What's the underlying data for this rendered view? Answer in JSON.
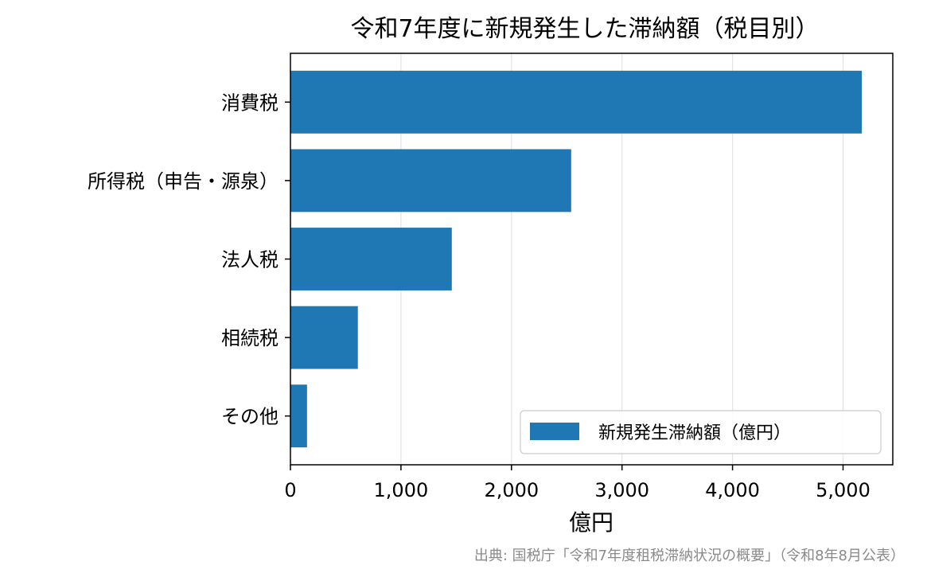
{
  "chart_data": {
    "type": "bar",
    "orientation": "horizontal",
    "title": "令和7年度に新規発生した滞納額（税目別）",
    "xlabel": "億円",
    "ylabel": "",
    "categories": [
      "消費税",
      "所得税（申告・源泉）",
      "法人税",
      "相続税",
      "その他"
    ],
    "series": [
      {
        "name": "新規発生滞納額（億円）",
        "values": [
          5170,
          2540,
          1460,
          610,
          150
        ],
        "color": "#1f77b4"
      }
    ],
    "xlim": [
      0,
      5450
    ],
    "xticks": [
      0,
      1000,
      2000,
      3000,
      4000,
      5000
    ],
    "xtick_labels": [
      "0",
      "1,000",
      "2,000",
      "3,000",
      "4,000",
      "5,000"
    ],
    "grid": "x",
    "legend_position": "lower-right",
    "source": "出典: 国税庁「令和7年度租税滞納状況の概要」（令和8年8月公表）"
  }
}
